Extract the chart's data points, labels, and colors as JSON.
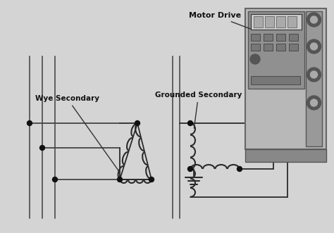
{
  "bg_color": "#d4d4d4",
  "line_color": "#333333",
  "dark_color": "#2a2a2a",
  "label_motor_drive": "Motor Drive",
  "label_grounded": "Grounded Secondary",
  "label_wye": "Wye Secondary"
}
